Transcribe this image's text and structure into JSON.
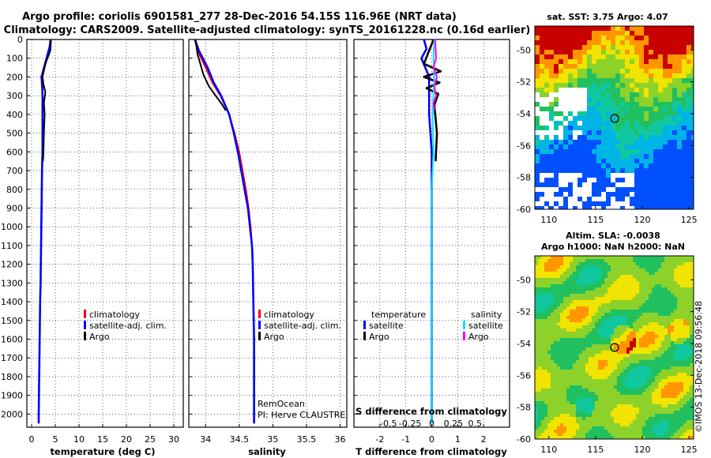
{
  "header": {
    "title_line1": "Argo profile: coriolis 6901581_277 28-Dec-2016 54.15S 116.96E (NRT data)",
    "title_line2": "Climatology: CARS2009. Satellite-adjusted climatology: synTS_20161228.nc (0.16d earlier)"
  },
  "colors": {
    "climatology": "#ff0000",
    "satellite": "#0000ff",
    "argo": "#000000",
    "satellite_salinity": "#00e5ff",
    "argo_salinity": "#ff00ff"
  },
  "depth_axis": {
    "ticks": [
      "0",
      "100",
      "200",
      "300",
      "400",
      "500",
      "600",
      "700",
      "800",
      "900",
      "1000",
      "1100",
      "1200",
      "1300",
      "1400",
      "1500",
      "1600",
      "1700",
      "1800",
      "1900",
      "2000"
    ]
  },
  "legends": {
    "temp": [
      "climatology",
      "satellite-adj. clim.",
      "Argo"
    ],
    "sal": [
      "climatology",
      "satellite-adj. clim.",
      "Argo"
    ],
    "diff_temperature_title": "temperature",
    "diff_salinity_title": "salinity",
    "diff_temperature": [
      "satellite",
      "Argo"
    ],
    "diff_salinity": [
      "satellite",
      "Argo"
    ]
  },
  "credits": {
    "line1": "RemOcean",
    "line2": "PI: Herve CLAUSTRE"
  },
  "maps": {
    "sst_title": "sat. SST: 3.75 Argo: 4.07",
    "sla_title_line1": "Altim. SLA: -0.0038",
    "sla_title_line2": "Argo h1000: NaN h2000: NaN",
    "lat_ticks": [
      "-50",
      "-52",
      "-54",
      "-56",
      "-58",
      "-60"
    ],
    "lon_ticks": [
      "110",
      "115",
      "120",
      "125"
    ],
    "watermark": "©IMOS 13-Dec-2018 09:56:48"
  },
  "chart_data": [
    {
      "type": "line",
      "title": "",
      "xlabel": "temperature (deg C)",
      "ylabel": "",
      "xlim": [
        -1,
        32
      ],
      "ylim": [
        2070,
        0
      ],
      "xticks": [
        "0",
        "5",
        "10",
        "15",
        "20",
        "25",
        "30"
      ],
      "series": [
        {
          "name": "climatology",
          "x": [
            4.1,
            3.9,
            2.2,
            2.3,
            2.35,
            2.35,
            2.3,
            2.3,
            2.2,
            2.15,
            2.1,
            2.05,
            2.0,
            1.95,
            1.9,
            1.8,
            1.75,
            1.7,
            1.65,
            1.6,
            1.55,
            1.5,
            1.5
          ],
          "depth": [
            0,
            40,
            200,
            260,
            300,
            400,
            500,
            600,
            700,
            800,
            900,
            1000,
            1100,
            1200,
            1300,
            1400,
            1500,
            1600,
            1700,
            1800,
            1900,
            2000,
            2050
          ]
        },
        {
          "name": "satellite-adj. clim.",
          "x": [
            4.0,
            3.8,
            2.1,
            2.25,
            2.3,
            2.3,
            2.3,
            2.3,
            2.2,
            2.15,
            2.1,
            2.05,
            2.0,
            1.95,
            1.9,
            1.8,
            1.75,
            1.7,
            1.65,
            1.6,
            1.55,
            1.5,
            1.5
          ],
          "depth": [
            0,
            40,
            200,
            260,
            300,
            400,
            500,
            600,
            700,
            800,
            900,
            1000,
            1100,
            1200,
            1300,
            1400,
            1500,
            1600,
            1700,
            1800,
            1900,
            2000,
            2050
          ]
        },
        {
          "name": "Argo",
          "x": [
            4.07,
            4.05,
            3.95,
            2.9,
            2.3,
            2.5,
            2.9,
            2.6,
            2.75,
            2.6,
            2.5,
            2.4
          ],
          "depth": [
            0,
            20,
            60,
            130,
            200,
            240,
            280,
            340,
            400,
            500,
            600,
            650
          ]
        }
      ]
    },
    {
      "type": "line",
      "xlabel": "salinity",
      "xlim": [
        33.75,
        36.1
      ],
      "ylim": [
        2070,
        0
      ],
      "xticks": [
        "34",
        "34.5",
        "35",
        "35.5",
        "36"
      ],
      "series": [
        {
          "name": "climatology",
          "x": [
            33.84,
            33.88,
            34.0,
            34.1,
            34.22,
            34.35,
            34.43,
            34.5,
            34.55,
            34.6,
            34.64,
            34.67,
            34.69,
            34.7,
            34.71,
            34.72,
            34.72,
            34.72,
            34.72,
            34.72
          ],
          "depth": [
            0,
            60,
            150,
            230,
            300,
            400,
            500,
            600,
            700,
            800,
            900,
            1000,
            1100,
            1200,
            1400,
            1600,
            1800,
            1900,
            2000,
            2050
          ]
        },
        {
          "name": "satellite-adj. clim.",
          "x": [
            33.84,
            33.9,
            34.03,
            34.12,
            34.23,
            34.35,
            34.42,
            34.48,
            34.53,
            34.58,
            34.63,
            34.66,
            34.69,
            34.7,
            34.71,
            34.72,
            34.72,
            34.72,
            34.72,
            34.72
          ],
          "depth": [
            0,
            60,
            150,
            230,
            300,
            400,
            500,
            600,
            700,
            800,
            900,
            1000,
            1100,
            1200,
            1400,
            1600,
            1800,
            1900,
            2000,
            2050
          ]
        },
        {
          "name": "Argo",
          "x": [
            33.85,
            33.88,
            33.97,
            34.05,
            34.15,
            34.25,
            34.3
          ],
          "depth": [
            0,
            80,
            190,
            250,
            300,
            350,
            380
          ]
        }
      ]
    },
    {
      "type": "line",
      "xlabel": "T difference from climatology",
      "xlabel_top": "S difference from climatology",
      "xlim": [
        -3,
        3
      ],
      "xlim_salinity": [
        -0.9,
        0.9
      ],
      "ylim": [
        2070,
        0
      ],
      "xticks": [
        "-2",
        "-1",
        "0",
        "1",
        "2"
      ],
      "xticks_salinity": [
        "-0.5",
        "-0.25",
        "0",
        "0.25",
        "0.5"
      ],
      "series": [
        {
          "name": "temperature satellite",
          "x": [
            -0.3,
            -0.2,
            -0.4,
            -0.1,
            -0.1,
            0.0,
            0.0,
            0.0,
            0.0,
            0.0,
            0.0
          ],
          "depth": [
            0,
            50,
            100,
            200,
            400,
            600,
            800,
            1000,
            1400,
            1800,
            2050
          ]
        },
        {
          "name": "temperature Argo",
          "x": [
            0.07,
            -0.3,
            0.35,
            -0.3,
            0.3,
            -0.2,
            0.25,
            0.1,
            0.2,
            0.15
          ],
          "depth": [
            0,
            130,
            170,
            200,
            230,
            260,
            290,
            350,
            500,
            650
          ]
        },
        {
          "name": "salinity satellite",
          "x": [
            0.03,
            0.02,
            0.03,
            0.01,
            0.02,
            0.0,
            0.0,
            0.0,
            0.0
          ],
          "depth": [
            0,
            100,
            200,
            400,
            600,
            800,
            1200,
            1600,
            2050
          ]
        },
        {
          "name": "salinity Argo",
          "x": [
            0.04,
            0.05,
            0.02,
            0.06,
            0.03,
            0.05,
            0.02,
            0.03
          ],
          "depth": [
            0,
            100,
            150,
            200,
            250,
            300,
            340,
            380
          ]
        }
      ]
    }
  ]
}
